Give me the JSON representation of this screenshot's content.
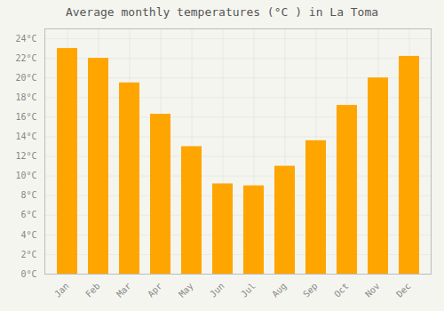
{
  "chart_data": {
    "type": "bar",
    "title": "Average monthly temperatures (°C ) in La Toma",
    "categories": [
      "Jan",
      "Feb",
      "Mar",
      "Apr",
      "May",
      "Jun",
      "Jul",
      "Aug",
      "Sep",
      "Oct",
      "Nov",
      "Dec"
    ],
    "values": [
      23.0,
      22.0,
      19.5,
      16.3,
      13.0,
      9.2,
      9.0,
      11.0,
      13.6,
      17.2,
      20.0,
      22.2
    ],
    "color": "#FFA500",
    "ylim": [
      0,
      25
    ],
    "yticks": [
      {
        "value": 0,
        "label": "0°C"
      },
      {
        "value": 2,
        "label": "2°C"
      },
      {
        "value": 4,
        "label": "4°C"
      },
      {
        "value": 6,
        "label": "6°C"
      },
      {
        "value": 8,
        "label": "8°C"
      },
      {
        "value": 10,
        "label": "10°C"
      },
      {
        "value": 12,
        "label": "12°C"
      },
      {
        "value": 14,
        "label": "14°C"
      },
      {
        "value": 16,
        "label": "16°C"
      },
      {
        "value": 18,
        "label": "18°C"
      },
      {
        "value": 20,
        "label": "20°C"
      },
      {
        "value": 22,
        "label": "22°C"
      },
      {
        "value": 24,
        "label": "24°C"
      }
    ],
    "grid": true
  }
}
